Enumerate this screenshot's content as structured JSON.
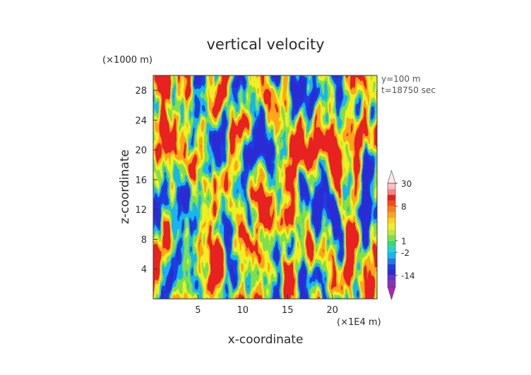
{
  "chart_data": {
    "type": "heatmap",
    "title": "vertical velocity",
    "xlabel": "x-coordinate",
    "ylabel": "z-coordinate",
    "x_unit": "(×1E4 m)",
    "y_unit": "(×1000 m)",
    "annotations": [
      "y=100  m",
      "t=18750 sec"
    ],
    "x_ticks": [
      5,
      10,
      15,
      20
    ],
    "y_ticks": [
      4,
      8,
      12,
      16,
      20,
      24,
      28
    ],
    "xlim": [
      0,
      25
    ],
    "ylim": [
      0,
      30
    ],
    "grid": false,
    "colorbar": {
      "placement": "right",
      "tick_labels": [
        "30",
        "8",
        "1",
        "-2",
        "-14"
      ],
      "levels": [
        -30,
        -22,
        -14,
        -10,
        -6,
        -4,
        -2,
        -1,
        1,
        2,
        3,
        4,
        5,
        6,
        8,
        11,
        15,
        20,
        30,
        40
      ],
      "colors": [
        "#b81fb8",
        "#8a2fc2",
        "#6a2fc9",
        "#2b2bd6",
        "#1f3fe0",
        "#1e7aee",
        "#16b8f0",
        "#22d3d3",
        "#2fdc7a",
        "#7fe04a",
        "#c4e83a",
        "#f0f020",
        "#ffd21c",
        "#ffa51a",
        "#ff7a14",
        "#ff4a10",
        "#e82020",
        "#ff8080",
        "#ffc0c0",
        "#ffe8e8"
      ]
    },
    "value_range": [
      -30,
      30
    ],
    "field_description": "turbulent vertical velocity field (y=100 m, t=18750 sec)"
  }
}
